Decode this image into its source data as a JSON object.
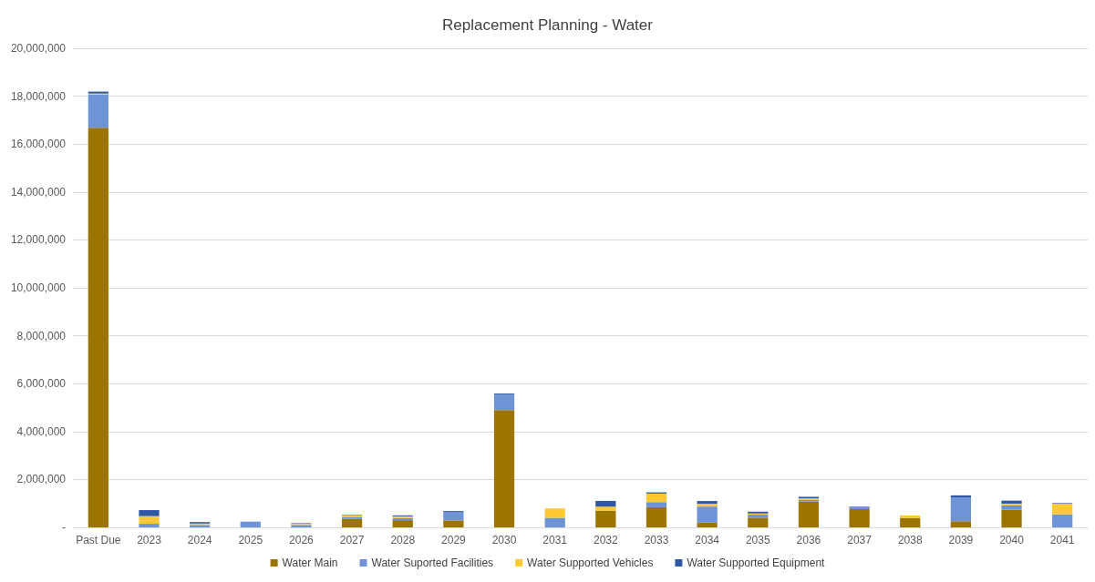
{
  "chart_data": {
    "type": "bar",
    "title": "Replacement Planning - Water",
    "stacked": true,
    "categories": [
      "Past Due",
      "2023",
      "2024",
      "2025",
      "2026",
      "2027",
      "2028",
      "2029",
      "2030",
      "2031",
      "2032",
      "2033",
      "2034",
      "2035",
      "2036",
      "2037",
      "2038",
      "2039",
      "2040",
      "2041"
    ],
    "series": [
      {
        "name": "Water Main",
        "color": "#9c7400",
        "values": [
          16680000,
          0,
          0,
          0,
          0,
          350000,
          300000,
          290000,
          4900000,
          0,
          700000,
          840000,
          200000,
          405000,
          1080000,
          760000,
          395000,
          255000,
          735000,
          0
        ]
      },
      {
        "name": "Water Suported Facilities",
        "color": "#6e94d6",
        "values": [
          1390000,
          150000,
          100000,
          240000,
          100000,
          90000,
          90000,
          340000,
          635000,
          400000,
          0,
          215000,
          670000,
          125000,
          65000,
          60000,
          0,
          1000000,
          180000,
          545000
        ]
      },
      {
        "name": "Water Supported Vehicles",
        "color": "#ffc933",
        "values": [
          40000,
          320000,
          60000,
          0,
          60000,
          60000,
          70000,
          0,
          0,
          390000,
          165000,
          355000,
          115000,
          50000,
          65000,
          0,
          100000,
          0,
          75000,
          445000
        ]
      },
      {
        "name": "Water Supported Equipment",
        "color": "#2f58a4",
        "values": [
          80000,
          250000,
          60000,
          0,
          20000,
          20000,
          40000,
          50000,
          50000,
          null,
          240000,
          50000,
          115000,
          75000,
          65000,
          40000,
          0,
          80000,
          125000,
          25000
        ]
      }
    ],
    "ylim": [
      0,
      20000000
    ],
    "yticks": [
      {
        "value": 0,
        "label": "-"
      },
      {
        "value": 2000000,
        "label": "2,000,000"
      },
      {
        "value": 4000000,
        "label": "4,000,000"
      },
      {
        "value": 6000000,
        "label": "6,000,000"
      },
      {
        "value": 8000000,
        "label": "8,000,000"
      },
      {
        "value": 10000000,
        "label": "10,000,000"
      },
      {
        "value": 12000000,
        "label": "12,000,000"
      },
      {
        "value": 14000000,
        "label": "14,000,000"
      },
      {
        "value": 16000000,
        "label": "16,000,000"
      },
      {
        "value": 18000000,
        "label": "18,000,000"
      },
      {
        "value": 20000000,
        "label": "20,000,000"
      }
    ],
    "grid": "y",
    "legend": "bottom"
  }
}
